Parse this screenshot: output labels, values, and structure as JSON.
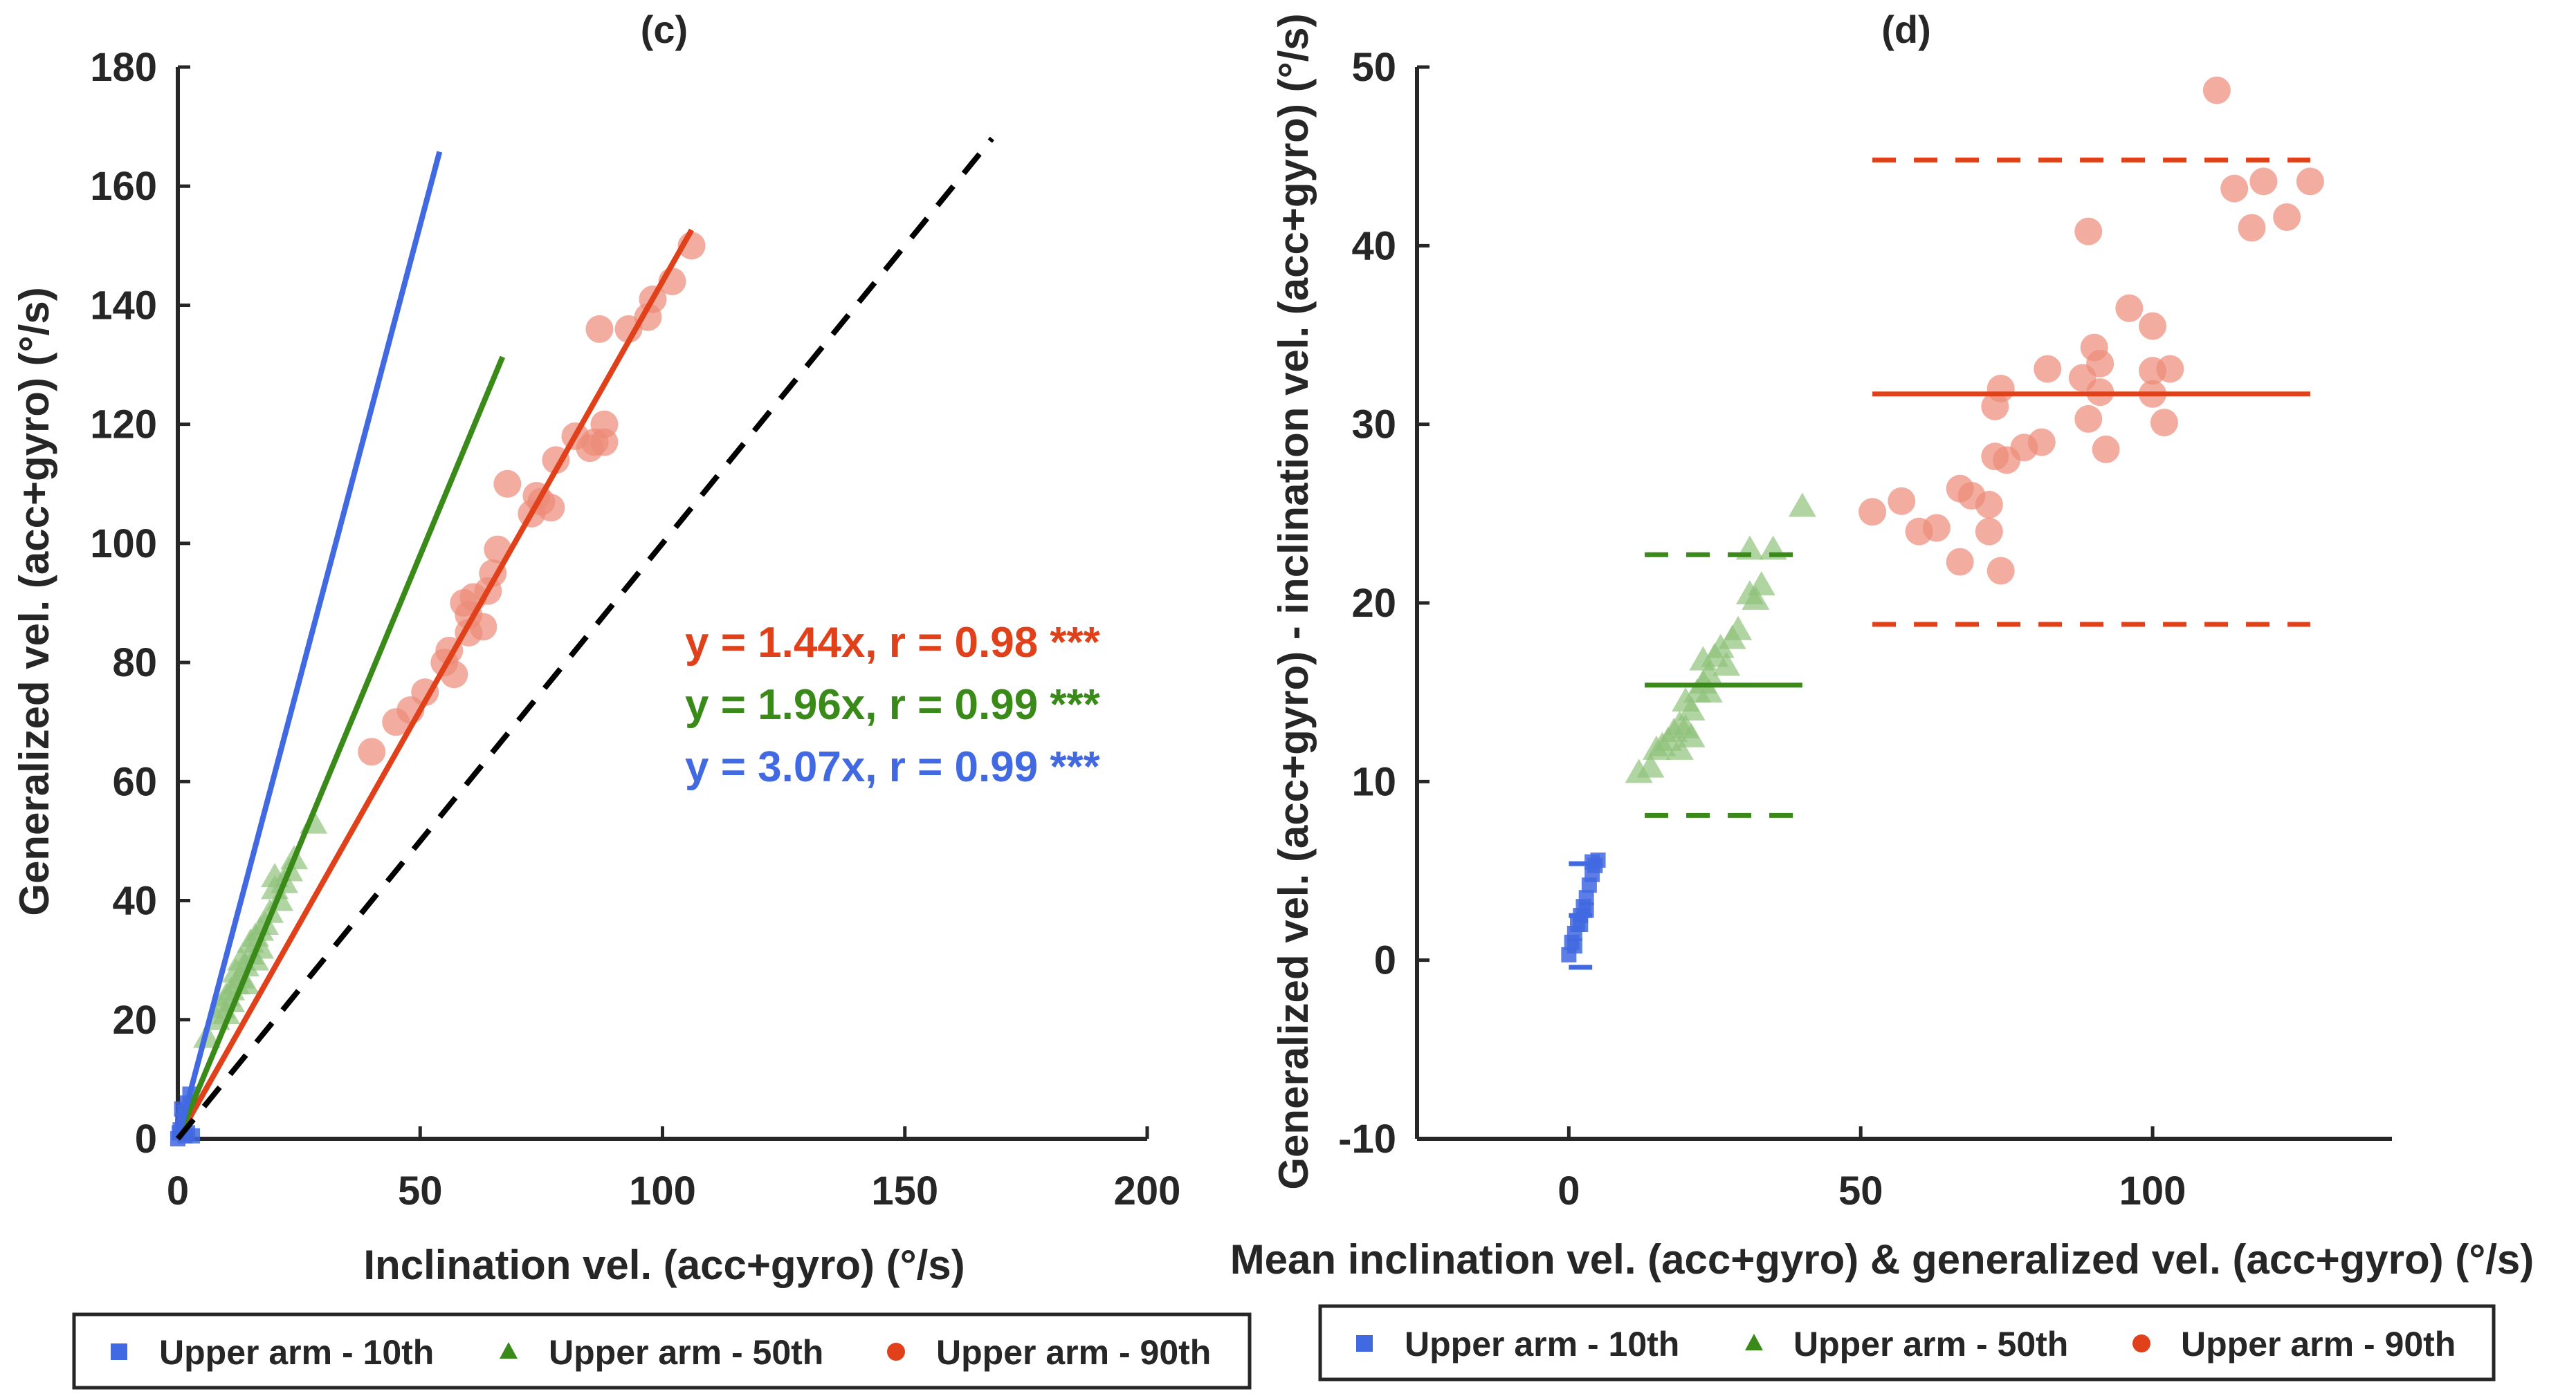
{
  "colors": {
    "blue": "#4169e1",
    "green": "#3a8a1a",
    "red": "#e0401a",
    "red_pt": "#ec8a78",
    "green_pt": "#8fc27a",
    "axis": "#262626"
  },
  "legend": [
    "Upper arm - 10th",
    "Upper arm - 50th",
    "Upper arm - 90th"
  ],
  "chart_data": [
    {
      "type": "scatter",
      "title": "(c)",
      "xlabel": "Inclination vel. (acc+gyro) (°/s)",
      "ylabel": "Generalized vel. (acc+gyro) (°/s)",
      "xlim": [
        0,
        200
      ],
      "ylim": [
        0,
        180
      ],
      "xticks": [
        0,
        50,
        100,
        150,
        200
      ],
      "yticks": [
        0,
        20,
        40,
        60,
        80,
        100,
        120,
        140,
        160,
        180
      ],
      "legend_position": "bottom",
      "annotations": [
        "y = 1.44x, r = 0.98 ***",
        "y = 1.96x, r = 0.99 ***",
        "y = 3.07x, r = 0.99 ***"
      ],
      "fit_lines": [
        {
          "series": "Upper arm - 90th",
          "slope": 1.44,
          "x_end": 106
        },
        {
          "series": "Upper arm - 50th",
          "slope": 1.96,
          "x_end": 67
        },
        {
          "series": "Upper arm - 10th",
          "slope": 3.07,
          "x_end": 54
        },
        {
          "series": "identity",
          "slope": 1.0,
          "x_end": 168
        }
      ],
      "series": [
        {
          "name": "Upper arm - 10th",
          "marker": "square",
          "points": [
            [
              0,
              0
            ],
            [
              0.5,
              1.5
            ],
            [
              1,
              3
            ],
            [
              1.5,
              4.5
            ],
            [
              2,
              6
            ],
            [
              2.5,
              7.5
            ],
            [
              1,
              2
            ],
            [
              0.3,
              1
            ],
            [
              2,
              1
            ],
            [
              1.5,
              0.5
            ],
            [
              3,
              0.5
            ],
            [
              0.8,
              5
            ]
          ]
        },
        {
          "name": "Upper arm - 50th",
          "marker": "triangle",
          "points": [
            [
              6,
              17
            ],
            [
              8,
              20
            ],
            [
              9,
              22
            ],
            [
              10,
              24
            ],
            [
              11,
              25
            ],
            [
              12,
              26
            ],
            [
              12,
              28
            ],
            [
              13,
              27
            ],
            [
              13,
              30
            ],
            [
              14,
              26
            ],
            [
              14,
              29
            ],
            [
              15,
              31
            ],
            [
              15,
              33
            ],
            [
              16,
              30
            ],
            [
              16,
              34
            ],
            [
              17,
              32
            ],
            [
              17,
              35
            ],
            [
              18,
              36
            ],
            [
              19,
              38
            ],
            [
              20,
              42
            ],
            [
              20,
              44
            ],
            [
              21,
              40
            ],
            [
              22,
              43
            ],
            [
              23,
              45
            ],
            [
              24,
              47
            ],
            [
              28,
              53
            ],
            [
              10,
              21
            ],
            [
              11,
              23
            ]
          ]
        },
        {
          "name": "Upper arm - 90th",
          "marker": "circle",
          "points": [
            [
              40,
              65
            ],
            [
              45,
              70
            ],
            [
              48,
              72
            ],
            [
              51,
              75
            ],
            [
              55,
              80
            ],
            [
              56,
              82
            ],
            [
              57,
              78
            ],
            [
              59,
              90
            ],
            [
              60,
              88
            ],
            [
              60,
              85
            ],
            [
              61,
              91
            ],
            [
              63,
              86
            ],
            [
              64,
              92
            ],
            [
              65,
              95
            ],
            [
              66,
              99
            ],
            [
              68,
              110
            ],
            [
              73,
              105
            ],
            [
              74,
              108
            ],
            [
              75,
              107
            ],
            [
              77,
              106
            ],
            [
              78,
              114
            ],
            [
              82,
              118
            ],
            [
              85,
              116
            ],
            [
              86,
              117
            ],
            [
              88,
              120
            ],
            [
              88,
              117
            ],
            [
              87,
              136
            ],
            [
              93,
              136
            ],
            [
              97,
              138
            ],
            [
              98,
              141
            ],
            [
              102,
              144
            ],
            [
              106,
              150
            ]
          ]
        }
      ]
    },
    {
      "type": "scatter",
      "title": "(d)",
      "xlabel": "Mean inclination vel. (acc+gyro) & generalized vel. (acc+gyro) (°/s)",
      "ylabel": "Generalized vel. (acc+gyro) - inclination vel. (acc+gyro) (°/s)",
      "xlim": [
        -26,
        141
      ],
      "ylim": [
        -10,
        50
      ],
      "xticks": [
        0,
        50,
        100
      ],
      "yticks": [
        -10,
        0,
        10,
        20,
        30,
        40,
        50
      ],
      "legend_position": "bottom",
      "reference_lines": [
        {
          "series": "Upper arm - 90th",
          "mean": 31.7,
          "upper": 44.8,
          "lower": 18.8,
          "x_range": [
            52,
            127
          ]
        },
        {
          "series": "Upper arm - 50th",
          "mean": 15.4,
          "upper": 22.7,
          "lower": 8.1,
          "x_range": [
            13,
            40
          ]
        },
        {
          "series": "Upper arm - 10th",
          "mean": 2.5,
          "upper": 5.4,
          "lower": -0.4,
          "x_range": [
            0,
            4
          ]
        }
      ],
      "series": [
        {
          "name": "Upper arm - 10th",
          "marker": "square",
          "points": [
            [
              0,
              0.3
            ],
            [
              0.5,
              1
            ],
            [
              1,
              1.5
            ],
            [
              1.5,
              2
            ],
            [
              2,
              2.5
            ],
            [
              2.5,
              3
            ],
            [
              3,
              3.5
            ],
            [
              3.5,
              4.2
            ],
            [
              4,
              4.8
            ],
            [
              4.5,
              5.3
            ],
            [
              5,
              5.6
            ],
            [
              1,
              0.8
            ],
            [
              2,
              2
            ],
            [
              3,
              2.8
            ],
            [
              4,
              5.5
            ]
          ]
        },
        {
          "name": "Upper arm - 50th",
          "marker": "triangle",
          "points": [
            [
              12,
              10.5
            ],
            [
              14,
              10.8
            ],
            [
              15,
              11.8
            ],
            [
              16,
              12
            ],
            [
              17,
              12.3
            ],
            [
              18,
              12.8
            ],
            [
              19,
              11.8
            ],
            [
              19,
              13.2
            ],
            [
              20,
              13
            ],
            [
              20,
              14.5
            ],
            [
              21,
              12.5
            ],
            [
              22,
              15
            ],
            [
              23,
              15.5
            ],
            [
              23,
              16.8
            ],
            [
              24,
              15
            ],
            [
              25,
              17
            ],
            [
              26,
              17.5
            ],
            [
              27,
              16.5
            ],
            [
              28,
              18
            ],
            [
              29,
              18.5
            ],
            [
              31,
              20.5
            ],
            [
              32,
              20.2
            ],
            [
              33,
              21
            ],
            [
              31,
              23
            ],
            [
              35,
              23
            ],
            [
              40,
              25.4
            ],
            [
              21,
              14
            ],
            [
              24,
              16
            ]
          ]
        },
        {
          "name": "Upper arm - 90th",
          "marker": "circle",
          "points": [
            [
              52,
              25.1
            ],
            [
              57,
              25.7
            ],
            [
              60,
              24
            ],
            [
              63,
              24.2
            ],
            [
              67,
              22.3
            ],
            [
              67,
              26.4
            ],
            [
              69,
              26
            ],
            [
              72,
              25.5
            ],
            [
              72,
              24
            ],
            [
              74,
              21.8
            ],
            [
              73,
              31
            ],
            [
              74,
              32
            ],
            [
              73,
              28.2
            ],
            [
              75,
              28
            ],
            [
              78,
              28.7
            ],
            [
              81,
              29
            ],
            [
              82,
              33.1
            ],
            [
              88,
              32.6
            ],
            [
              89,
              30.3
            ],
            [
              90,
              34.3
            ],
            [
              91,
              33.4
            ],
            [
              91,
              31.8
            ],
            [
              92,
              28.6
            ],
            [
              96,
              36.5
            ],
            [
              100,
              35.5
            ],
            [
              100,
              33
            ],
            [
              100,
              31.7
            ],
            [
              102,
              30.1
            ],
            [
              103,
              33.1
            ],
            [
              89,
              40.8
            ],
            [
              111,
              48.7
            ],
            [
              114,
              43.2
            ],
            [
              117,
              41
            ],
            [
              119,
              43.6
            ],
            [
              123,
              41.6
            ],
            [
              127,
              43.6
            ]
          ]
        }
      ]
    }
  ]
}
